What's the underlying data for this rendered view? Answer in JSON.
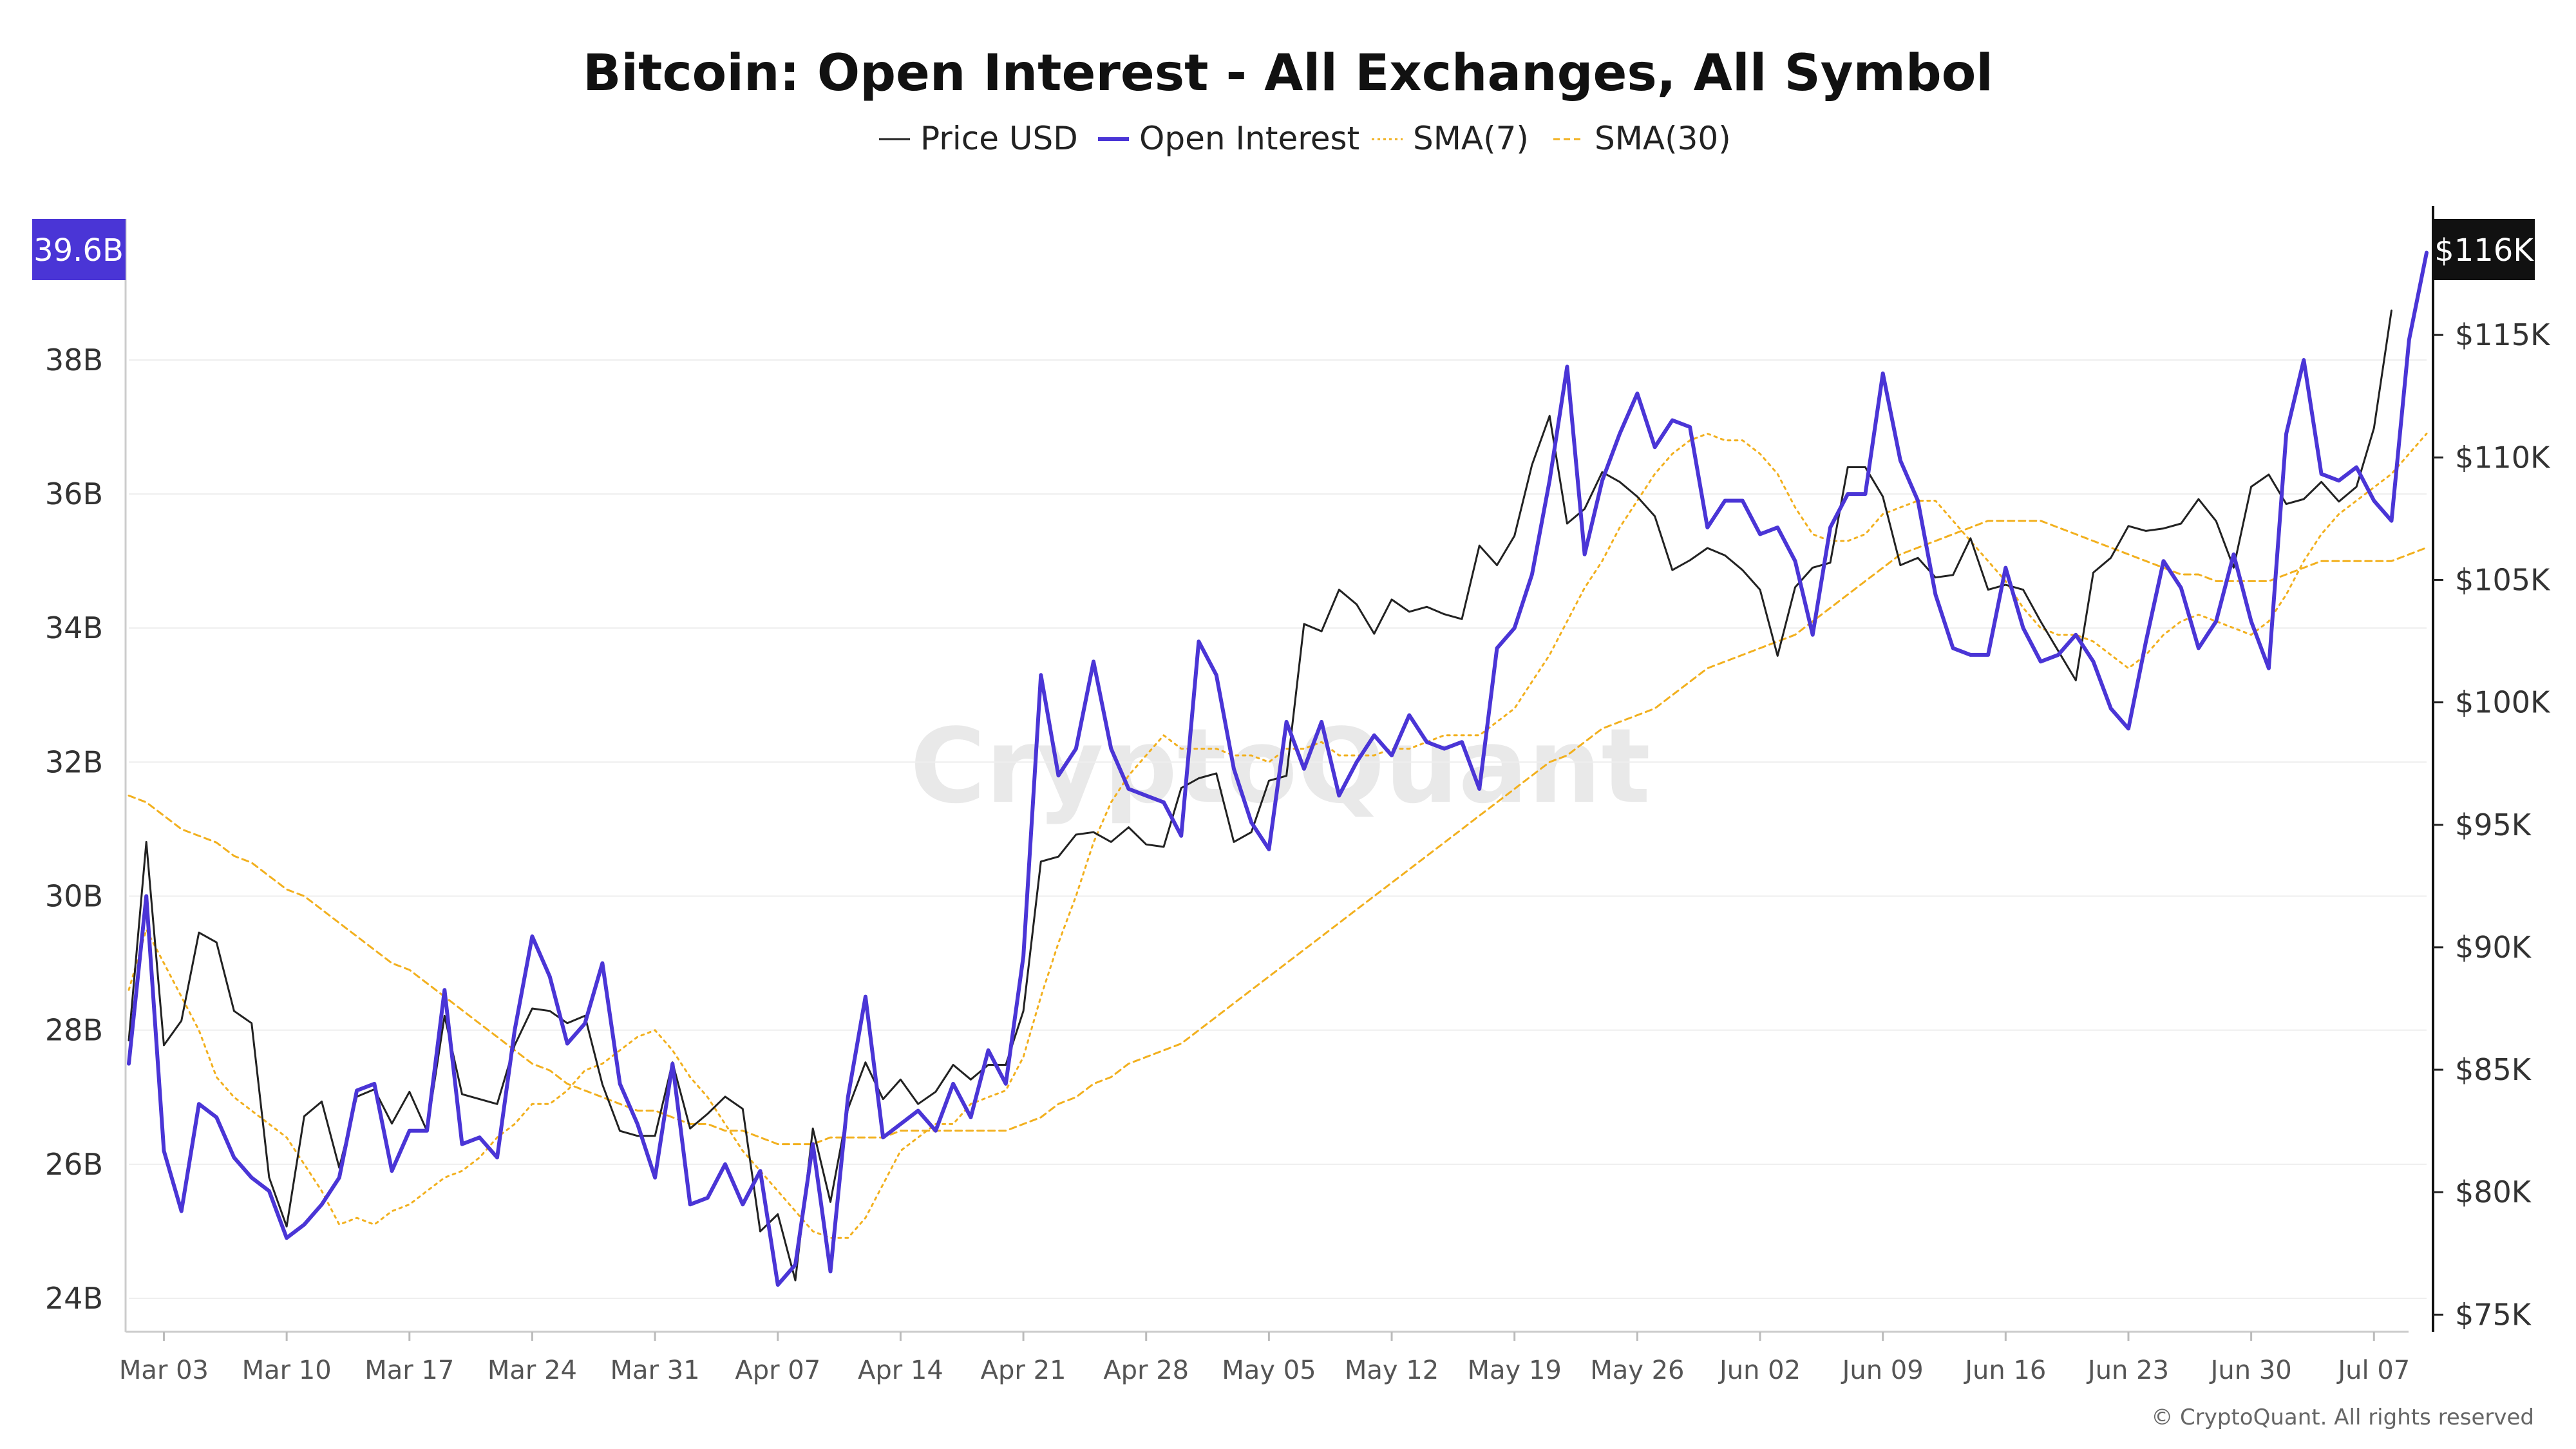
{
  "chart_data": {
    "type": "line",
    "title": "Bitcoin: Open Interest - All Exchanges, All Symbol",
    "legend": [
      {
        "label": "Price USD",
        "color": "#222222",
        "style": "solid"
      },
      {
        "label": "Open Interest",
        "color": "#4a35d6",
        "style": "solid"
      },
      {
        "label": "SMA(7)",
        "color": "#f2b01e",
        "style": "dotted"
      },
      {
        "label": "SMA(30)",
        "color": "#f2b01e",
        "style": "dashed"
      }
    ],
    "legend_placement": "top-center",
    "grid": true,
    "x_ticks": [
      "Mar 03",
      "Mar 10",
      "Mar 17",
      "Mar 24",
      "Mar 31",
      "Apr 07",
      "Apr 14",
      "Apr 21",
      "Apr 28",
      "May 05",
      "May 12",
      "May 19",
      "May 26",
      "Jun 02",
      "Jun 09",
      "Jun 16",
      "Jun 23",
      "Jun 30",
      "Jul 07"
    ],
    "x_range": [
      "2025-03-01",
      "2025-07-10"
    ],
    "y_left": {
      "ticks": [
        "24B",
        "26B",
        "28B",
        "30B",
        "32B",
        "34B",
        "36B",
        "38B"
      ],
      "tick_values": [
        24,
        26,
        28,
        30,
        32,
        34,
        36,
        38
      ],
      "range": [
        23.5,
        40.2
      ],
      "unit": "B"
    },
    "y_right": {
      "ticks": [
        "$75K",
        "$80K",
        "$85K",
        "$90K",
        "$95K",
        "$100K",
        "$105K",
        "$110K",
        "$115K"
      ],
      "tick_values": [
        75,
        80,
        85,
        90,
        95,
        100,
        105,
        110,
        115
      ],
      "range": [
        74.3,
        120.0
      ],
      "unit": "K"
    },
    "badge_left": "39.6B",
    "badge_right": "$116K",
    "watermark": "CryptoQuant",
    "copyright": "© CryptoQuant. All rights reserved",
    "series": [
      {
        "name": "Price USD",
        "axis": "right",
        "color": "#222222",
        "start": "2025-03-01",
        "values": [
          86.2,
          94.3,
          86.0,
          87.0,
          90.6,
          90.2,
          87.4,
          86.9,
          80.6,
          78.6,
          83.1,
          83.7,
          81.0,
          83.9,
          84.2,
          82.8,
          84.1,
          82.5,
          87.2,
          84.0,
          83.8,
          83.6,
          86.0,
          87.5,
          87.4,
          86.9,
          87.2,
          84.4,
          82.5,
          82.3,
          82.3,
          85.3,
          82.6,
          83.2,
          83.9,
          83.4,
          78.4,
          79.1,
          76.4,
          82.6,
          79.6,
          83.4,
          85.3,
          83.8,
          84.6,
          83.6,
          84.1,
          85.2,
          84.6,
          85.2,
          85.2,
          87.4,
          93.5,
          93.7,
          94.6,
          94.7,
          94.3,
          94.9,
          94.2,
          94.1,
          96.5,
          96.9,
          97.1,
          94.3,
          94.7,
          96.8,
          97.0,
          103.2,
          102.9,
          104.6,
          104.0,
          102.8,
          104.2,
          103.7,
          103.9,
          103.6,
          103.4,
          106.4,
          105.6,
          106.8,
          109.7,
          111.7,
          107.3,
          107.9,
          109.4,
          109.0,
          108.4,
          107.6,
          105.4,
          105.8,
          106.3,
          106.0,
          105.4,
          104.6,
          101.9,
          104.7,
          105.5,
          105.7,
          109.6,
          109.6,
          108.4,
          105.6,
          105.9,
          105.1,
          105.2,
          106.7,
          104.6,
          104.8,
          104.6,
          103.3,
          102.1,
          100.9,
          105.3,
          105.9,
          107.2,
          107.0,
          107.1,
          107.3,
          108.3,
          107.4,
          105.5,
          108.8,
          109.3,
          108.1,
          108.3,
          109.0,
          108.2,
          108.8,
          111.2,
          116.0
        ]
      },
      {
        "name": "Open Interest",
        "axis": "left",
        "color": "#4a35d6",
        "start": "2025-03-01",
        "values": [
          27.5,
          30.0,
          26.2,
          25.3,
          26.9,
          26.7,
          26.1,
          25.8,
          25.6,
          24.9,
          25.1,
          25.4,
          25.8,
          27.1,
          27.2,
          25.9,
          26.5,
          26.5,
          28.6,
          26.3,
          26.4,
          26.1,
          28.0,
          29.4,
          28.8,
          27.8,
          28.1,
          29.0,
          27.2,
          26.6,
          25.8,
          27.5,
          25.4,
          25.5,
          26.0,
          25.4,
          25.9,
          24.2,
          24.5,
          26.3,
          24.4,
          27.0,
          28.5,
          26.4,
          26.6,
          26.8,
          26.5,
          27.2,
          26.7,
          27.7,
          27.2,
          29.1,
          33.3,
          31.8,
          32.2,
          33.5,
          32.2,
          31.6,
          31.5,
          31.4,
          30.9,
          33.8,
          33.3,
          31.9,
          31.1,
          30.7,
          32.6,
          31.9,
          32.6,
          31.5,
          32.0,
          32.4,
          32.1,
          32.7,
          32.3,
          32.2,
          32.3,
          31.6,
          33.7,
          34.0,
          34.8,
          36.2,
          37.9,
          35.1,
          36.2,
          36.9,
          37.5,
          36.7,
          37.1,
          37.0,
          35.5,
          35.9,
          35.9,
          35.4,
          35.5,
          35.0,
          33.9,
          35.5,
          36.0,
          36.0,
          37.8,
          36.5,
          35.9,
          34.5,
          33.7,
          33.6,
          33.6,
          34.9,
          34.0,
          33.5,
          33.6,
          33.9,
          33.5,
          32.8,
          32.5,
          33.8,
          35.0,
          34.6,
          33.7,
          34.1,
          35.1,
          34.1,
          33.4,
          36.9,
          38.0,
          36.3,
          36.2,
          36.4,
          35.9,
          35.6,
          38.3,
          39.6
        ]
      },
      {
        "name": "SMA(7)",
        "axis": "left",
        "color": "#f2b01e",
        "start": "2025-03-01",
        "values": [
          28.6,
          29.5,
          29.0,
          28.5,
          28.0,
          27.3,
          27.0,
          26.8,
          26.6,
          26.4,
          26.0,
          25.6,
          25.1,
          25.2,
          25.1,
          25.3,
          25.4,
          25.6,
          25.8,
          25.9,
          26.1,
          26.4,
          26.6,
          26.9,
          26.9,
          27.1,
          27.4,
          27.5,
          27.7,
          27.9,
          28.0,
          27.7,
          27.3,
          27.0,
          26.6,
          26.2,
          25.9,
          25.6,
          25.3,
          25.0,
          24.9,
          24.9,
          25.2,
          25.7,
          26.2,
          26.4,
          26.6,
          26.6,
          26.9,
          27.0,
          27.1,
          27.6,
          28.5,
          29.3,
          30.0,
          30.8,
          31.4,
          31.8,
          32.1,
          32.4,
          32.2,
          32.2,
          32.2,
          32.1,
          32.1,
          32.0,
          32.2,
          32.2,
          32.3,
          32.1,
          32.1,
          32.1,
          32.2,
          32.2,
          32.3,
          32.4,
          32.4,
          32.4,
          32.6,
          32.8,
          33.2,
          33.6,
          34.1,
          34.6,
          35.0,
          35.5,
          35.9,
          36.3,
          36.6,
          36.8,
          36.9,
          36.8,
          36.8,
          36.6,
          36.3,
          35.8,
          35.4,
          35.3,
          35.3,
          35.4,
          35.7,
          35.8,
          35.9,
          35.9,
          35.6,
          35.3,
          35.0,
          34.7,
          34.3,
          34.0,
          33.9,
          33.9,
          33.8,
          33.6,
          33.4,
          33.6,
          33.9,
          34.1,
          34.2,
          34.1,
          34.0,
          33.9,
          34.1,
          34.5,
          35.0,
          35.4,
          35.7,
          35.9,
          36.1,
          36.3,
          36.6,
          36.9
        ]
      },
      {
        "name": "SMA(30)",
        "axis": "left",
        "color": "#f2b01e",
        "start": "2025-03-01",
        "values": [
          31.5,
          31.4,
          31.2,
          31.0,
          30.9,
          30.8,
          30.6,
          30.5,
          30.3,
          30.1,
          30.0,
          29.8,
          29.6,
          29.4,
          29.2,
          29.0,
          28.9,
          28.7,
          28.5,
          28.3,
          28.1,
          27.9,
          27.7,
          27.5,
          27.4,
          27.2,
          27.1,
          27.0,
          26.9,
          26.8,
          26.8,
          26.7,
          26.6,
          26.6,
          26.5,
          26.5,
          26.4,
          26.3,
          26.3,
          26.3,
          26.4,
          26.4,
          26.4,
          26.4,
          26.5,
          26.5,
          26.5,
          26.5,
          26.5,
          26.5,
          26.5,
          26.6,
          26.7,
          26.9,
          27.0,
          27.2,
          27.3,
          27.5,
          27.6,
          27.7,
          27.8,
          28.0,
          28.2,
          28.4,
          28.6,
          28.8,
          29.0,
          29.2,
          29.4,
          29.6,
          29.8,
          30.0,
          30.2,
          30.4,
          30.6,
          30.8,
          31.0,
          31.2,
          31.4,
          31.6,
          31.8,
          32.0,
          32.1,
          32.3,
          32.5,
          32.6,
          32.7,
          32.8,
          33.0,
          33.2,
          33.4,
          33.5,
          33.6,
          33.7,
          33.8,
          33.9,
          34.1,
          34.3,
          34.5,
          34.7,
          34.9,
          35.1,
          35.2,
          35.3,
          35.4,
          35.5,
          35.6,
          35.6,
          35.6,
          35.6,
          35.5,
          35.4,
          35.3,
          35.2,
          35.1,
          35.0,
          34.9,
          34.8,
          34.8,
          34.7,
          34.7,
          34.7,
          34.7,
          34.8,
          34.9,
          35.0,
          35.0,
          35.0,
          35.0,
          35.0,
          35.1,
          35.2
        ]
      }
    ]
  }
}
